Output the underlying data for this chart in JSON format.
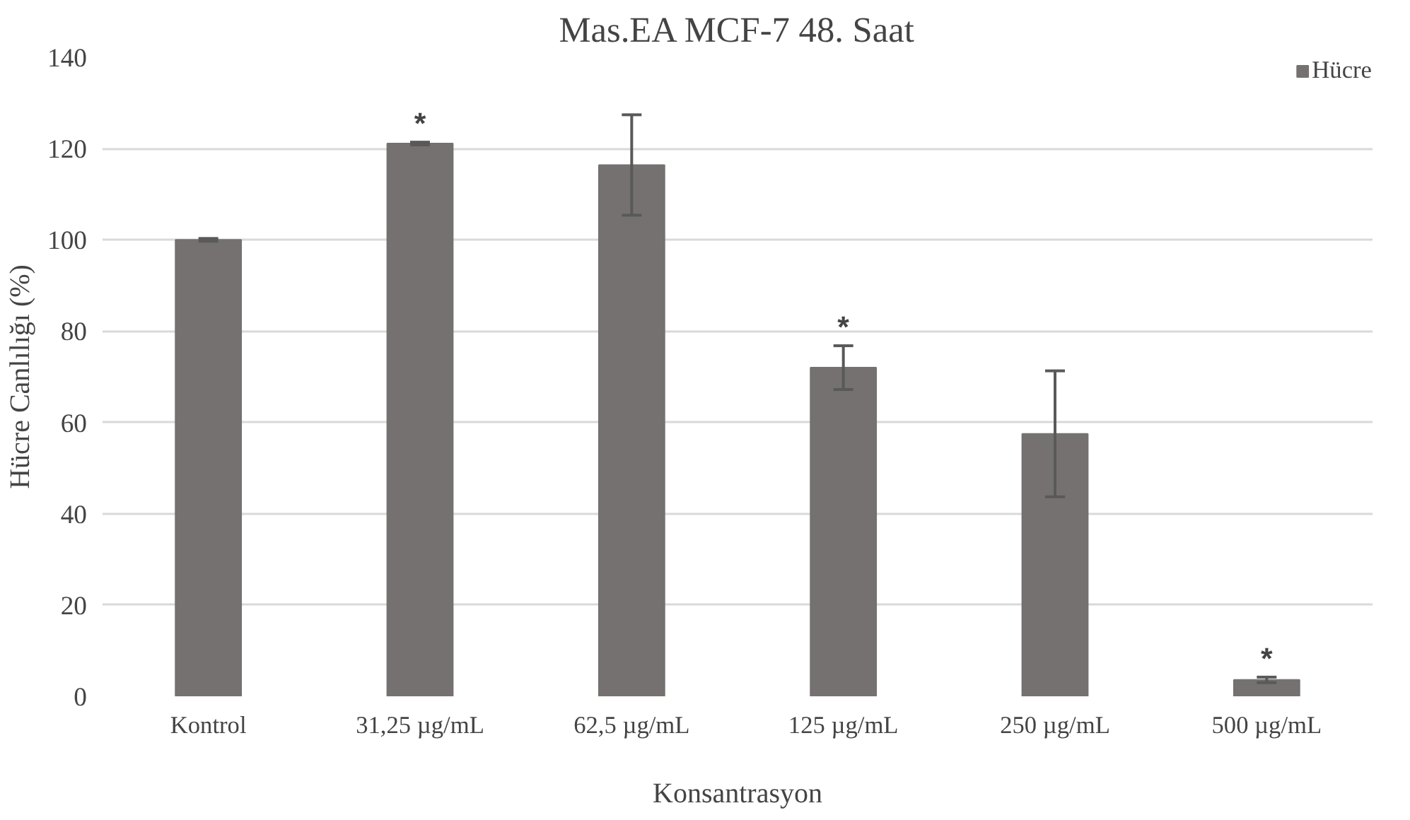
{
  "chart_data": {
    "type": "bar",
    "title": "Mas.EA MCF-7 48. Saat",
    "xlabel": "Konsantrasyon",
    "ylabel": "Hücre Canlılığı (%)",
    "categories": [
      "Kontrol",
      "31,25 µg/mL",
      "62,5 µg/mL",
      "125 µg/mL",
      "250 µg/mL",
      "500 µg/mL"
    ],
    "series": [
      {
        "name": "Hücre",
        "color": "#767171",
        "values": [
          100,
          121.1,
          116.4,
          72,
          57.5,
          3.6
        ],
        "errors": [
          0.3,
          0.3,
          11,
          4.8,
          13.8,
          0.6
        ]
      }
    ],
    "ylim": [
      0,
      140
    ],
    "yticks": [
      0,
      20,
      40,
      60,
      80,
      100,
      120,
      140
    ],
    "grid": "y",
    "legend": "top right",
    "annotations": [
      {
        "text": "*",
        "x": "31,25 µg/mL",
        "y": 121.4
      },
      {
        "text": "*",
        "x": "125 µg/mL",
        "y": 76.8
      },
      {
        "text": "*",
        "x": "500 µg/mL",
        "y": 4.2
      }
    ]
  }
}
